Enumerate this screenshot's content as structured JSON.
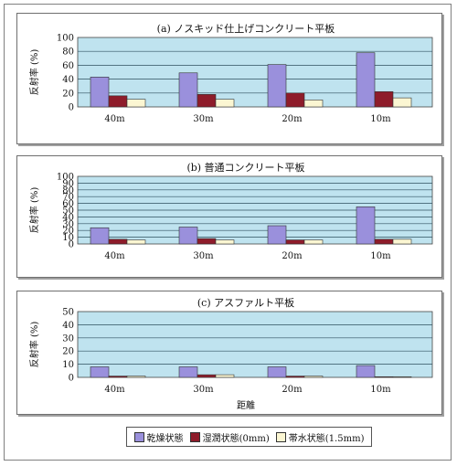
{
  "chart_data": [
    {
      "type": "bar",
      "title": "(a) ノスキッド仕上げコンクリート平板",
      "ylabel": "反射率 (%)",
      "xlabel": "",
      "ylim": [
        0,
        100
      ],
      "yticks": [
        0,
        20,
        40,
        60,
        80,
        100
      ],
      "categories": [
        "40m",
        "30m",
        "20m",
        "10m"
      ],
      "series": [
        {
          "name": "乾燥状態",
          "values": [
            43,
            49,
            61,
            78
          ]
        },
        {
          "name": "湿潤状態(0mm)",
          "values": [
            16,
            18,
            20,
            22
          ]
        },
        {
          "name": "帯水状態(1.5mm)",
          "values": [
            11,
            11,
            10,
            13
          ]
        }
      ],
      "grid": true
    },
    {
      "type": "bar",
      "title": "(b) 普通コンクリート平板",
      "ylabel": "反射率 (%)",
      "xlabel": "",
      "ylim": [
        0,
        100
      ],
      "yticks": [
        0,
        10,
        20,
        30,
        40,
        50,
        60,
        70,
        80,
        90,
        100
      ],
      "categories": [
        "40m",
        "30m",
        "20m",
        "10m"
      ],
      "series": [
        {
          "name": "乾燥状態",
          "values": [
            24,
            25,
            27,
            55
          ]
        },
        {
          "name": "湿潤状態(0mm)",
          "values": [
            7,
            8,
            6,
            7
          ]
        },
        {
          "name": "帯水状態(1.5mm)",
          "values": [
            6,
            6,
            6,
            7
          ]
        }
      ],
      "grid": true
    },
    {
      "type": "bar",
      "title": "(c) アスファルト平板",
      "ylabel": "反射率 (%)",
      "xlabel": "距離",
      "ylim": [
        0,
        50
      ],
      "yticks": [
        0,
        10,
        20,
        30,
        40,
        50
      ],
      "categories": [
        "40m",
        "30m",
        "20m",
        "10m"
      ],
      "series": [
        {
          "name": "乾燥状態",
          "values": [
            8,
            8,
            8,
            9
          ]
        },
        {
          "name": "湿潤状態(0mm)",
          "values": [
            1,
            2,
            1,
            0.5
          ]
        },
        {
          "name": "帯水状態(1.5mm)",
          "values": [
            1,
            2,
            1,
            0.5
          ]
        }
      ],
      "grid": true
    }
  ],
  "legend": {
    "items": [
      {
        "label": "乾燥状態",
        "color": "#9a90dc"
      },
      {
        "label": "湿潤状態(0mm)",
        "color": "#8e1c2a"
      },
      {
        "label": "帯水状態(1.5mm)",
        "color": "#fbf6d2"
      }
    ]
  },
  "colors": {
    "plot_bg": "#bfe3ef",
    "gridline": "#2f4f5f"
  }
}
